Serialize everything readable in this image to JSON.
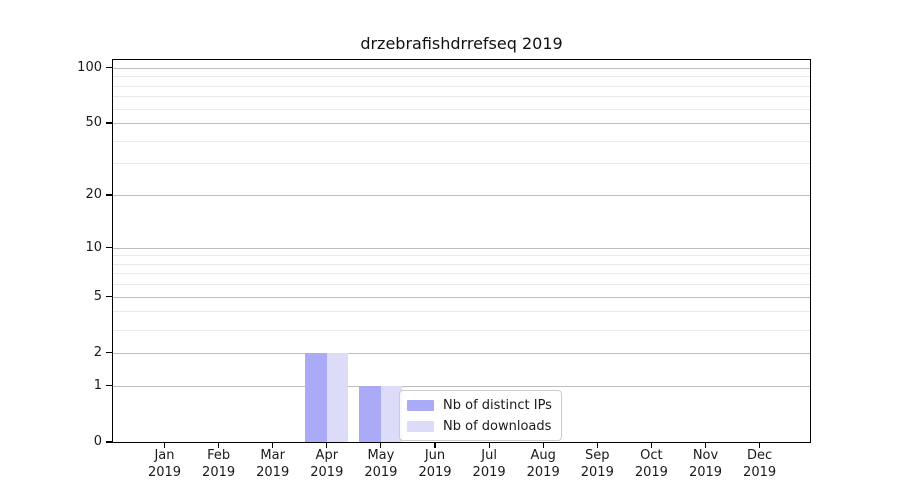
{
  "chart_data": {
    "type": "bar",
    "title": "drzebrafishdrrefseq 2019",
    "categories": [
      [
        "Jan",
        "2019"
      ],
      [
        "Feb",
        "2019"
      ],
      [
        "Mar",
        "2019"
      ],
      [
        "Apr",
        "2019"
      ],
      [
        "May",
        "2019"
      ],
      [
        "Jun",
        "2019"
      ],
      [
        "Jul",
        "2019"
      ],
      [
        "Aug",
        "2019"
      ],
      [
        "Sep",
        "2019"
      ],
      [
        "Oct",
        "2019"
      ],
      [
        "Nov",
        "2019"
      ],
      [
        "Dec",
        "2019"
      ]
    ],
    "series": [
      {
        "name": "Nb of distinct IPs",
        "color": "#aaaaf6",
        "values": [
          0,
          0,
          0,
          2,
          1,
          0,
          0,
          0,
          0,
          0,
          0,
          0
        ]
      },
      {
        "name": "Nb of downloads",
        "color": "#dcdcf8",
        "values": [
          0,
          0,
          0,
          2,
          1,
          0,
          0,
          0,
          0,
          0,
          0,
          0
        ]
      }
    ],
    "xlabel": "",
    "ylabel": "",
    "yscale": "log1p",
    "ylim": [
      0,
      110
    ],
    "yticks": [
      0,
      1,
      2,
      5,
      10,
      20,
      50,
      100
    ],
    "yticks_minor": [
      3,
      4,
      6,
      7,
      8,
      9,
      30,
      40,
      60,
      70,
      80,
      90
    ],
    "grid": "horizontal",
    "legend_position": "lower-right-inside"
  }
}
